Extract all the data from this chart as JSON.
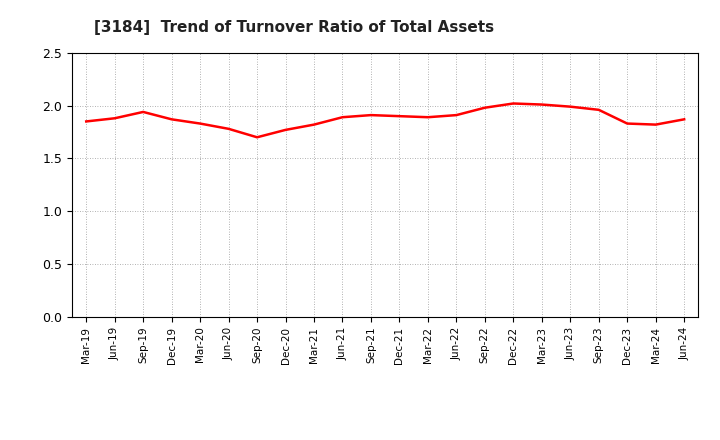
{
  "title": "[3184]  Trend of Turnover Ratio of Total Assets",
  "line_color": "#FF0000",
  "line_width": 1.8,
  "background_color": "#FFFFFF",
  "grid_color": "#999999",
  "ylim": [
    0.0,
    2.5
  ],
  "yticks": [
    0.0,
    0.5,
    1.0,
    1.5,
    2.0,
    2.5
  ],
  "x_labels": [
    "Mar-19",
    "Jun-19",
    "Sep-19",
    "Dec-19",
    "Mar-20",
    "Jun-20",
    "Sep-20",
    "Dec-20",
    "Mar-21",
    "Jun-21",
    "Sep-21",
    "Dec-21",
    "Mar-22",
    "Jun-22",
    "Sep-22",
    "Dec-22",
    "Mar-23",
    "Jun-23",
    "Sep-23",
    "Dec-23",
    "Mar-24",
    "Jun-24"
  ],
  "values": [
    1.85,
    1.88,
    1.94,
    1.87,
    1.83,
    1.78,
    1.7,
    1.77,
    1.82,
    1.89,
    1.91,
    1.9,
    1.89,
    1.91,
    1.98,
    2.02,
    2.01,
    1.99,
    1.96,
    1.83,
    1.82,
    1.87
  ]
}
